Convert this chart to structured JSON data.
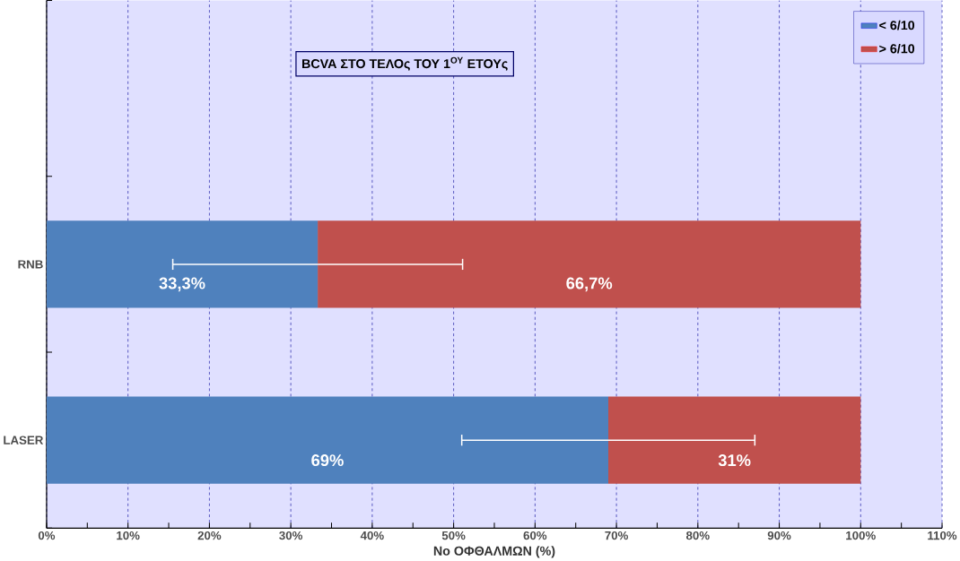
{
  "chart_data": {
    "type": "bar",
    "orientation": "horizontal",
    "stacked": true,
    "title": "BCVA ΣΤΟ ΤΕΛΟς ΤΟΥ 1$^{ΟΥ}$ ΕΤΟΥς",
    "xlabel": "Νο ΟΦΘΑΛΜΩΝ (%)",
    "categories": [
      null,
      "RNB",
      "LASER"
    ],
    "series": [
      {
        "name": "< 6/10",
        "color": "#4f81bd",
        "values": [
          null,
          33.3,
          69
        ],
        "errors": [
          null,
          17.8,
          18
        ],
        "value_labels": [
          null,
          "33,3%",
          "69%"
        ]
      },
      {
        "name": "> 6/10",
        "color": "#c0504d",
        "values": [
          null,
          66.7,
          31
        ],
        "value_labels": [
          null,
          "66,7%",
          "31%"
        ]
      }
    ],
    "xlim": [
      0,
      110
    ],
    "xticks": [
      {
        "value": 0,
        "label": "0%"
      },
      {
        "value": 10,
        "label": "10%"
      },
      {
        "value": 20,
        "label": "20%"
      },
      {
        "value": 30,
        "label": "30%"
      },
      {
        "value": 40,
        "label": "40%"
      },
      {
        "value": 50,
        "label": "50%"
      },
      {
        "value": 60,
        "label": "60%"
      },
      {
        "value": 70,
        "label": "70%"
      },
      {
        "value": 80,
        "label": "80%"
      },
      {
        "value": 90,
        "label": "90%"
      },
      {
        "value": 100,
        "label": "100%"
      },
      {
        "value": 110,
        "label": "110%"
      }
    ],
    "grid": "x",
    "legend": "top right"
  }
}
